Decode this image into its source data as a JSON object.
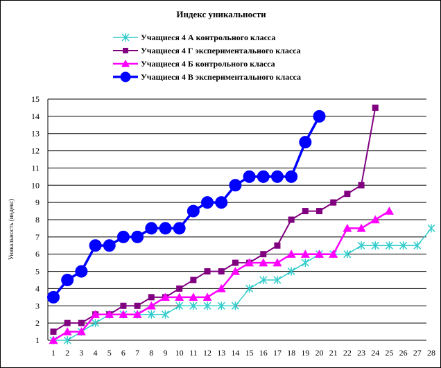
{
  "chart_data": {
    "type": "line",
    "title": "Индекс уникальности",
    "ylabel": "Уникальность (индекс)",
    "xlabel": "",
    "xlim": [
      1,
      28
    ],
    "ylim": [
      1,
      15
    ],
    "x_ticks": [
      1,
      2,
      3,
      4,
      5,
      6,
      7,
      8,
      9,
      10,
      11,
      12,
      13,
      14,
      15,
      16,
      17,
      18,
      19,
      20,
      21,
      22,
      23,
      24,
      25,
      26,
      27,
      28
    ],
    "y_ticks": [
      1,
      2,
      3,
      4,
      5,
      6,
      7,
      8,
      9,
      10,
      11,
      12,
      13,
      14,
      15
    ],
    "grid": "horizontal",
    "legend_position": "top",
    "series": [
      {
        "name": "Учащиеся 4 А контрольного класса",
        "color": "#33cccc",
        "marker": "asterisk",
        "values": [
          1,
          1,
          1.5,
          2,
          2.5,
          2.5,
          2.5,
          2.5,
          2.5,
          3,
          3,
          3,
          3,
          3,
          4,
          4.5,
          4.5,
          5,
          5.5,
          6,
          6,
          6,
          6.5,
          6.5,
          6.5,
          6.5,
          6.5,
          7.5
        ]
      },
      {
        "name": "Учащиеся 4 Г экспериментального класса",
        "color": "#800080",
        "marker": "square",
        "values": [
          1.5,
          2,
          2,
          2.5,
          2.5,
          3,
          3,
          3.5,
          3.5,
          4,
          4.5,
          5,
          5,
          5.5,
          5.5,
          6,
          6.5,
          8,
          8.5,
          8.5,
          9,
          9.5,
          10,
          14.5
        ]
      },
      {
        "name": "Учащиеся 4 Б контрольного класса",
        "color": "#ff00ff",
        "marker": "triangle",
        "values": [
          1,
          1.5,
          1.5,
          2.5,
          2.5,
          2.5,
          2.5,
          3,
          3.5,
          3.5,
          3.5,
          3.5,
          4,
          5,
          5.5,
          5.5,
          5.5,
          6,
          6,
          6,
          6,
          7.5,
          7.5,
          8,
          8.5
        ]
      },
      {
        "name": "Учащиеся 4 В экспериментального класса",
        "color": "#0000ff",
        "marker": "circle",
        "values": [
          3.5,
          4.5,
          5,
          6.5,
          6.5,
          7,
          7,
          7.5,
          7.5,
          7.5,
          8.5,
          9,
          9,
          10,
          10.5,
          10.5,
          10.5,
          10.5,
          12.5,
          14
        ]
      }
    ]
  }
}
